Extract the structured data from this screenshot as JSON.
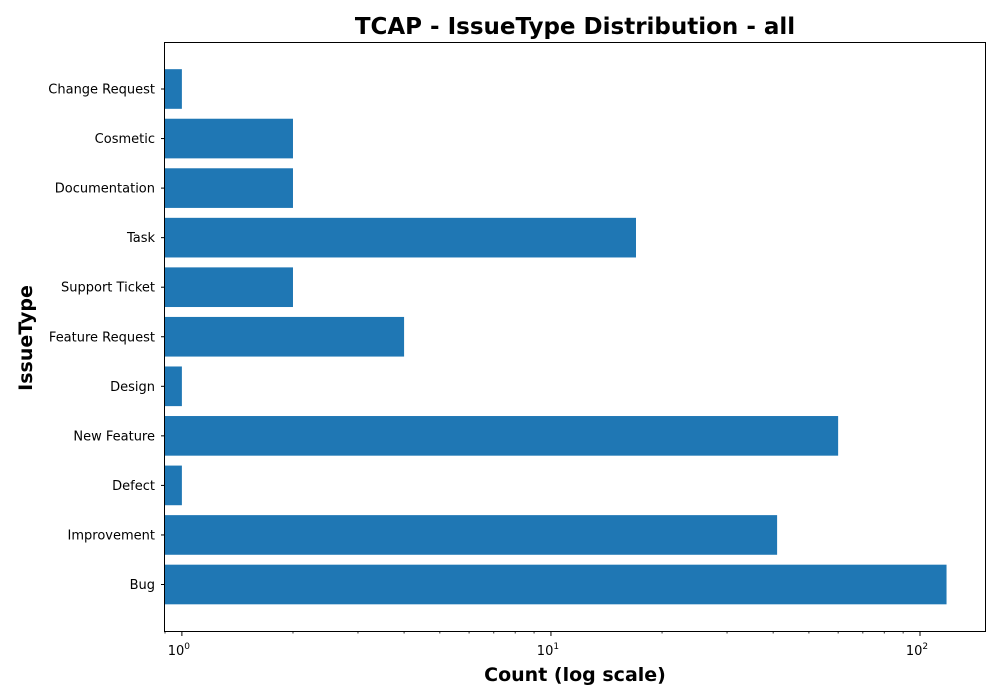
{
  "chart_data": {
    "type": "bar",
    "orientation": "horizontal",
    "title": "TCAP - IssueType Distribution - all",
    "xlabel": "Count (log scale)",
    "ylabel": "IssueType",
    "x_scale": "log",
    "xlim": [
      0.9,
      150
    ],
    "x_ticks": [
      {
        "value": 1,
        "base": "10",
        "exp": "0"
      },
      {
        "value": 10,
        "base": "10",
        "exp": "1"
      },
      {
        "value": 100,
        "base": "10",
        "exp": "2"
      }
    ],
    "categories": [
      "Bug",
      "Improvement",
      "Defect",
      "New Feature",
      "Design",
      "Feature Request",
      "Support Ticket",
      "Task",
      "Documentation",
      "Cosmetic",
      "Change Request"
    ],
    "values": [
      118,
      41,
      1,
      60,
      1,
      4,
      2,
      17,
      2,
      2,
      1
    ],
    "bar_color": "#1f77b4",
    "grid": false,
    "legend": "none"
  }
}
